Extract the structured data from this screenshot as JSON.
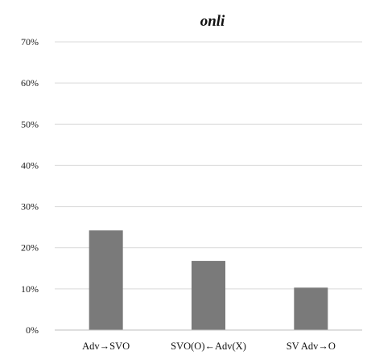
{
  "chart_data": {
    "type": "bar",
    "title": "onli",
    "categories": [
      "Adv→SVO",
      "SVO(O)←Adv(X)",
      "SV Adv→O"
    ],
    "values": [
      24.2,
      16.8,
      10.3
    ],
    "ylim": [
      0,
      70
    ],
    "yticks": [
      0,
      10,
      20,
      30,
      40,
      50,
      60,
      70
    ],
    "ytick_labels": [
      "0%",
      "10%",
      "20%",
      "30%",
      "40%",
      "50%",
      "60%",
      "70%"
    ],
    "xlabel": "",
    "ylabel": "",
    "grid": true,
    "bar_color": "#7a7a7a"
  }
}
